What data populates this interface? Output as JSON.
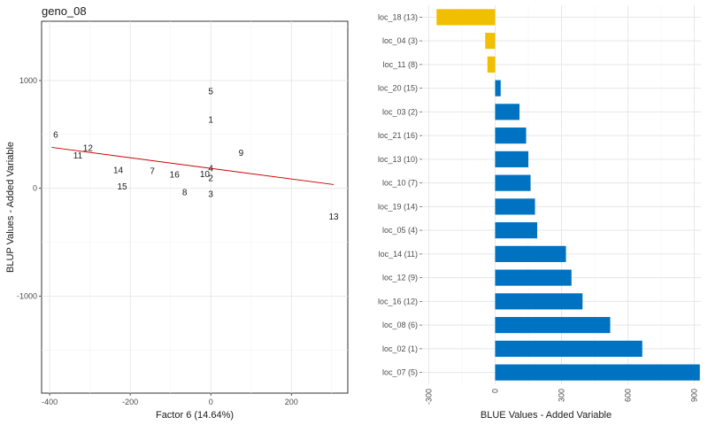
{
  "chart_data": [
    {
      "type": "scatter",
      "title": "geno_08",
      "xlabel": "Factor 6 (14.64%)",
      "ylabel": "BLUP Values - Added Variable",
      "xlim": [
        -420,
        340
      ],
      "ylim": [
        -1900,
        1550
      ],
      "x_ticks": [
        -400,
        -200,
        0,
        200
      ],
      "y_ticks": [
        -1000,
        0,
        1000
      ],
      "grid": true,
      "points": [
        {
          "label": "5",
          "x": 0,
          "y": 900
        },
        {
          "label": "1",
          "x": 0,
          "y": 640
        },
        {
          "label": "6",
          "x": -385,
          "y": 500
        },
        {
          "label": "12",
          "x": -305,
          "y": 375
        },
        {
          "label": "11",
          "x": -330,
          "y": 305
        },
        {
          "label": "9",
          "x": 75,
          "y": 330
        },
        {
          "label": "14",
          "x": -230,
          "y": 170
        },
        {
          "label": "7",
          "x": -145,
          "y": 160
        },
        {
          "label": "16",
          "x": -90,
          "y": 130
        },
        {
          "label": "10",
          "x": -15,
          "y": 135
        },
        {
          "label": "4",
          "x": 0,
          "y": 185
        },
        {
          "label": "2",
          "x": 0,
          "y": 95
        },
        {
          "label": "15",
          "x": -220,
          "y": 20
        },
        {
          "label": "8",
          "x": -65,
          "y": -35
        },
        {
          "label": "3",
          "x": 0,
          "y": -50
        },
        {
          "label": "13",
          "x": 305,
          "y": -260
        }
      ],
      "trend_line": {
        "x": [
          -395,
          305
        ],
        "y": [
          380,
          35
        ],
        "color": "#cc0000"
      }
    },
    {
      "type": "bar",
      "orientation": "horizontal",
      "xlabel": "BLUE Values - Added Variable",
      "xlim": [
        -330,
        930
      ],
      "x_ticks": [
        -300,
        0,
        300,
        600,
        900
      ],
      "x_tick_labels": [
        "-300",
        "0",
        "300",
        "600",
        "900"
      ],
      "grid": true,
      "positive_color": "#0072c2",
      "negative_color": "#f0c000",
      "categories": [
        "loc_18 (13)",
        "loc_04 (3)",
        "loc_11 (8)",
        "loc_20 (15)",
        "loc_03 (2)",
        "loc_21 (16)",
        "loc_13 (10)",
        "loc_10 (7)",
        "loc_19 (14)",
        "loc_05 (4)",
        "loc_14 (11)",
        "loc_12 (9)",
        "loc_16 (12)",
        "loc_08 (6)",
        "loc_02 (1)",
        "loc_07 (5)"
      ],
      "values": [
        -265,
        -45,
        -35,
        25,
        110,
        140,
        150,
        160,
        180,
        190,
        320,
        345,
        395,
        520,
        665,
        925
      ]
    }
  ]
}
